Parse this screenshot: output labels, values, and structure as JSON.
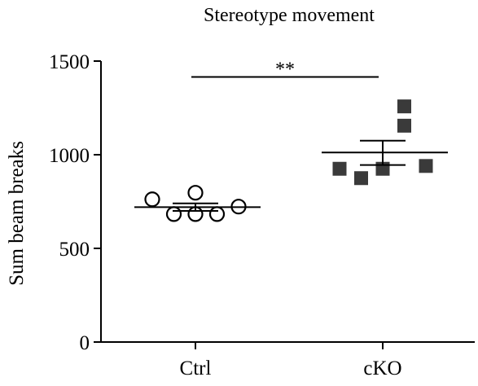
{
  "chart_data": {
    "type": "scatter",
    "title": "Stereotype movement",
    "xlabel": "",
    "ylabel": "Sum beam breaks",
    "categories": [
      "Ctrl",
      "cKO"
    ],
    "ylim": [
      0,
      1500
    ],
    "yticks": [
      "0",
      "500",
      "1000",
      "1500"
    ],
    "series": [
      {
        "category": "Ctrl",
        "marker": "open-circle",
        "color": "#000000",
        "points": [
          {
            "jitter": -1.0,
            "value": 762
          },
          {
            "jitter": -0.5,
            "value": 683
          },
          {
            "jitter": 0.0,
            "value": 797
          },
          {
            "jitter": 0.0,
            "value": 683
          },
          {
            "jitter": 0.5,
            "value": 683
          },
          {
            "jitter": 1.0,
            "value": 723
          }
        ],
        "mean": 720,
        "sem_low": 700,
        "sem_high": 740
      },
      {
        "category": "cKO",
        "marker": "filled-square",
        "color": "#3a3a3a",
        "points": [
          {
            "jitter": -1.0,
            "value": 925
          },
          {
            "jitter": -0.5,
            "value": 875
          },
          {
            "jitter": 0.0,
            "value": 925
          },
          {
            "jitter": 0.5,
            "value": 1258
          },
          {
            "jitter": 0.5,
            "value": 1155
          },
          {
            "jitter": 1.0,
            "value": 940
          }
        ],
        "mean": 1012,
        "sem_low": 945,
        "sem_high": 1075
      }
    ],
    "significance": {
      "label": "**",
      "from": "Ctrl",
      "to": "cKO",
      "value": 1415
    }
  }
}
